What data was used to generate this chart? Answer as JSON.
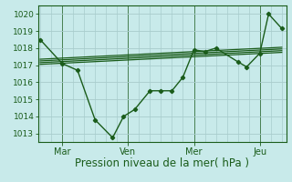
{
  "bg_color": "#c8eaea",
  "grid_color": "#a8cccc",
  "line_color": "#1a5c1a",
  "xlabel": "Pression niveau de la mer( hPa )",
  "ylim": [
    1012.5,
    1020.5
  ],
  "yticks": [
    1013,
    1014,
    1015,
    1016,
    1017,
    1018,
    1019,
    1020
  ],
  "xtick_labels": [
    "Mar",
    "Ven",
    "Mer",
    "Jeu"
  ],
  "xtick_positions": [
    1,
    4,
    7,
    10
  ],
  "xlim": [
    -0.1,
    11.2
  ],
  "main_x": [
    0,
    1,
    1.7,
    2.5,
    3.3,
    3.8,
    4.3,
    5.0,
    5.5,
    6.0,
    6.5,
    7.0,
    7.5,
    8.0,
    9.0,
    9.4,
    10.0,
    10.4,
    11.0
  ],
  "main_y": [
    1018.5,
    1017.1,
    1016.7,
    1013.8,
    1012.75,
    1014.0,
    1014.4,
    1015.5,
    1015.5,
    1015.5,
    1016.3,
    1017.9,
    1017.8,
    1018.0,
    1017.2,
    1016.9,
    1017.7,
    1020.0,
    1019.15
  ],
  "trend_lines": [
    [
      0.0,
      1017.05,
      11.0,
      1017.75
    ],
    [
      0.0,
      1017.15,
      11.0,
      1017.85
    ],
    [
      0.0,
      1017.25,
      11.0,
      1017.95
    ],
    [
      0.0,
      1017.35,
      11.0,
      1018.05
    ]
  ]
}
